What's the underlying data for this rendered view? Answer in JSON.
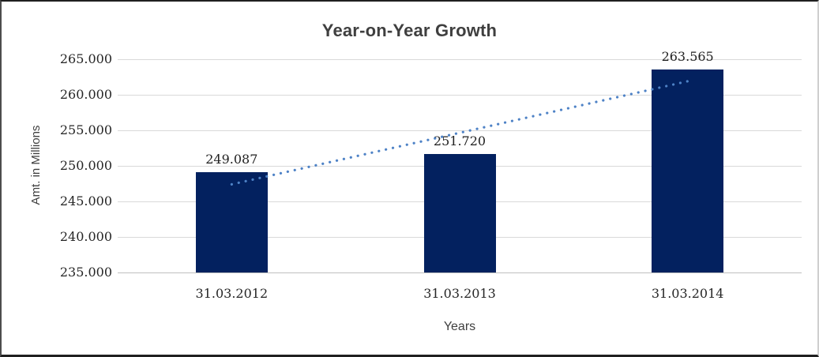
{
  "chart_data": {
    "type": "bar",
    "title": "Year-on-Year Growth",
    "categories": [
      "31.03.2012",
      "31.03.2013",
      "31.03.2014"
    ],
    "values": [
      249.087,
      251.72,
      263.565
    ],
    "value_labels": [
      "249.087",
      "251.720",
      "263.565"
    ],
    "xlabel": "Years",
    "ylabel": "Amt. in Millions",
    "ylim": [
      235,
      265
    ],
    "ytick_step": 5,
    "ytick_labels": [
      "265.000",
      "260.000",
      "255.000",
      "250.000",
      "245.000",
      "240.000",
      "235.000"
    ],
    "grid": true,
    "legend": "none",
    "colors": {
      "bar": "#03215f",
      "trendline": "#4e82c6",
      "gridline": "#d9d9d9",
      "axis_line": "#bfbfbf",
      "title_text": "#3f3f3f",
      "tick_text": "#262626"
    },
    "trendline": {
      "type": "linear",
      "style": "dotted",
      "start_category_index": 0,
      "end_category_index": 2,
      "start_value": 247.4,
      "end_value": 261.9
    }
  }
}
